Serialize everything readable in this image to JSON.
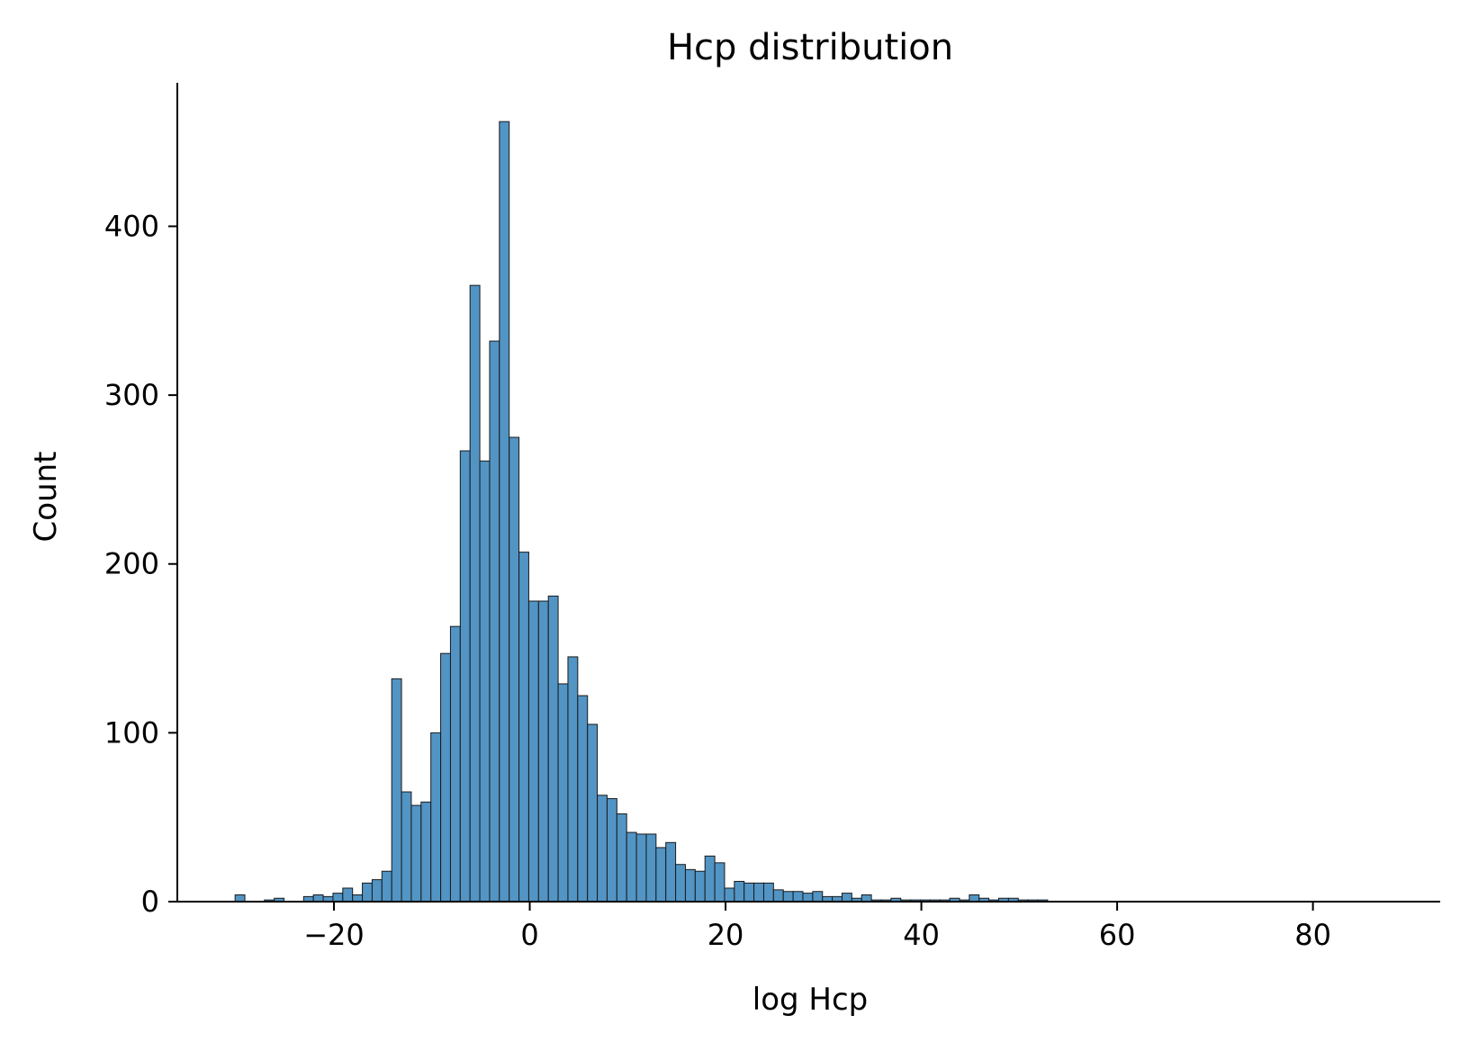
{
  "chart_data": {
    "type": "bar",
    "title": "Hcp distribution",
    "xlabel": "log Hcp",
    "ylabel": "Count",
    "xlim": [
      -36,
      93
    ],
    "ylim": [
      0,
      485
    ],
    "x_ticks": [
      -20,
      0,
      20,
      40,
      60,
      80
    ],
    "x_tick_labels": [
      "−20",
      "0",
      "20",
      "40",
      "60",
      "80"
    ],
    "y_ticks": [
      0,
      100,
      200,
      300,
      400
    ],
    "y_tick_labels": [
      "0",
      "100",
      "200",
      "300",
      "400"
    ],
    "bin_start": -30.1,
    "bin_width": 1.0,
    "values": [
      4,
      0,
      0,
      1,
      2,
      0,
      0,
      3,
      4,
      3,
      5,
      8,
      4,
      11,
      13,
      18,
      132,
      65,
      57,
      59,
      100,
      147,
      163,
      267,
      365,
      261,
      332,
      462,
      275,
      207,
      178,
      178,
      181,
      129,
      145,
      122,
      105,
      63,
      61,
      52,
      41,
      40,
      40,
      32,
      35,
      22,
      19,
      18,
      27,
      23,
      8,
      12,
      11,
      11,
      11,
      7,
      6,
      6,
      5,
      6,
      3,
      3,
      5,
      2,
      4,
      1,
      1,
      2,
      1,
      1,
      1,
      1,
      1,
      2,
      1,
      4,
      2,
      1,
      2,
      2,
      1,
      1,
      1,
      0,
      0,
      0,
      0,
      0,
      0,
      0,
      0,
      0,
      0,
      0,
      0,
      0,
      0,
      0,
      0,
      0,
      0,
      0,
      0,
      0,
      0,
      0,
      0,
      0,
      0,
      0,
      0,
      0,
      0,
      0,
      0,
      0,
      0,
      0
    ],
    "grid": false,
    "legend": "none",
    "bar_color": "#5294c4",
    "edge_color": "#1a1a1a"
  }
}
